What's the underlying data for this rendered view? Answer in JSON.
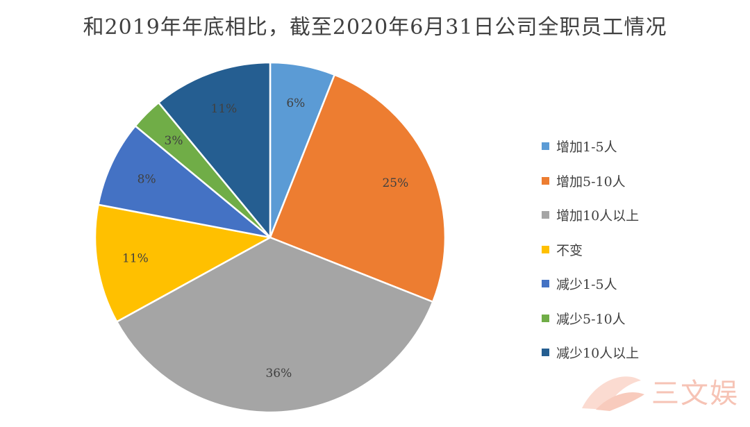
{
  "chart_data": {
    "type": "pie",
    "title": "和2019年年底相比，截至2020年6月31日公司全职员工情况",
    "start_angle_deg": 0,
    "direction": "clockwise",
    "legend_position": "right",
    "slices": [
      {
        "label": "增加1-5人",
        "value": 6,
        "value_label": "6%",
        "color": "#5b9bd5",
        "label_color": "#404040"
      },
      {
        "label": "增加5-10人",
        "value": 25,
        "value_label": "25%",
        "color": "#ed7d31",
        "label_color": "#404040"
      },
      {
        "label": "增加10人以上",
        "value": 36,
        "value_label": "36%",
        "color": "#a5a5a5",
        "label_color": "#404040"
      },
      {
        "label": "不变",
        "value": 11,
        "value_label": "11%",
        "color": "#ffc000",
        "label_color": "#404040"
      },
      {
        "label": "减少1-5人",
        "value": 8,
        "value_label": "8%",
        "color": "#4472c4",
        "label_color": "#404040"
      },
      {
        "label": "减少5-10人",
        "value": 3,
        "value_label": "3%",
        "color": "#70ad47",
        "label_color": "#404040"
      },
      {
        "label": "减少10人以上",
        "value": 11,
        "value_label": "11%",
        "color": "#255e91",
        "label_color": "#404040"
      }
    ]
  },
  "watermark": {
    "text": "三文娱",
    "color": "#f6c3b5"
  }
}
